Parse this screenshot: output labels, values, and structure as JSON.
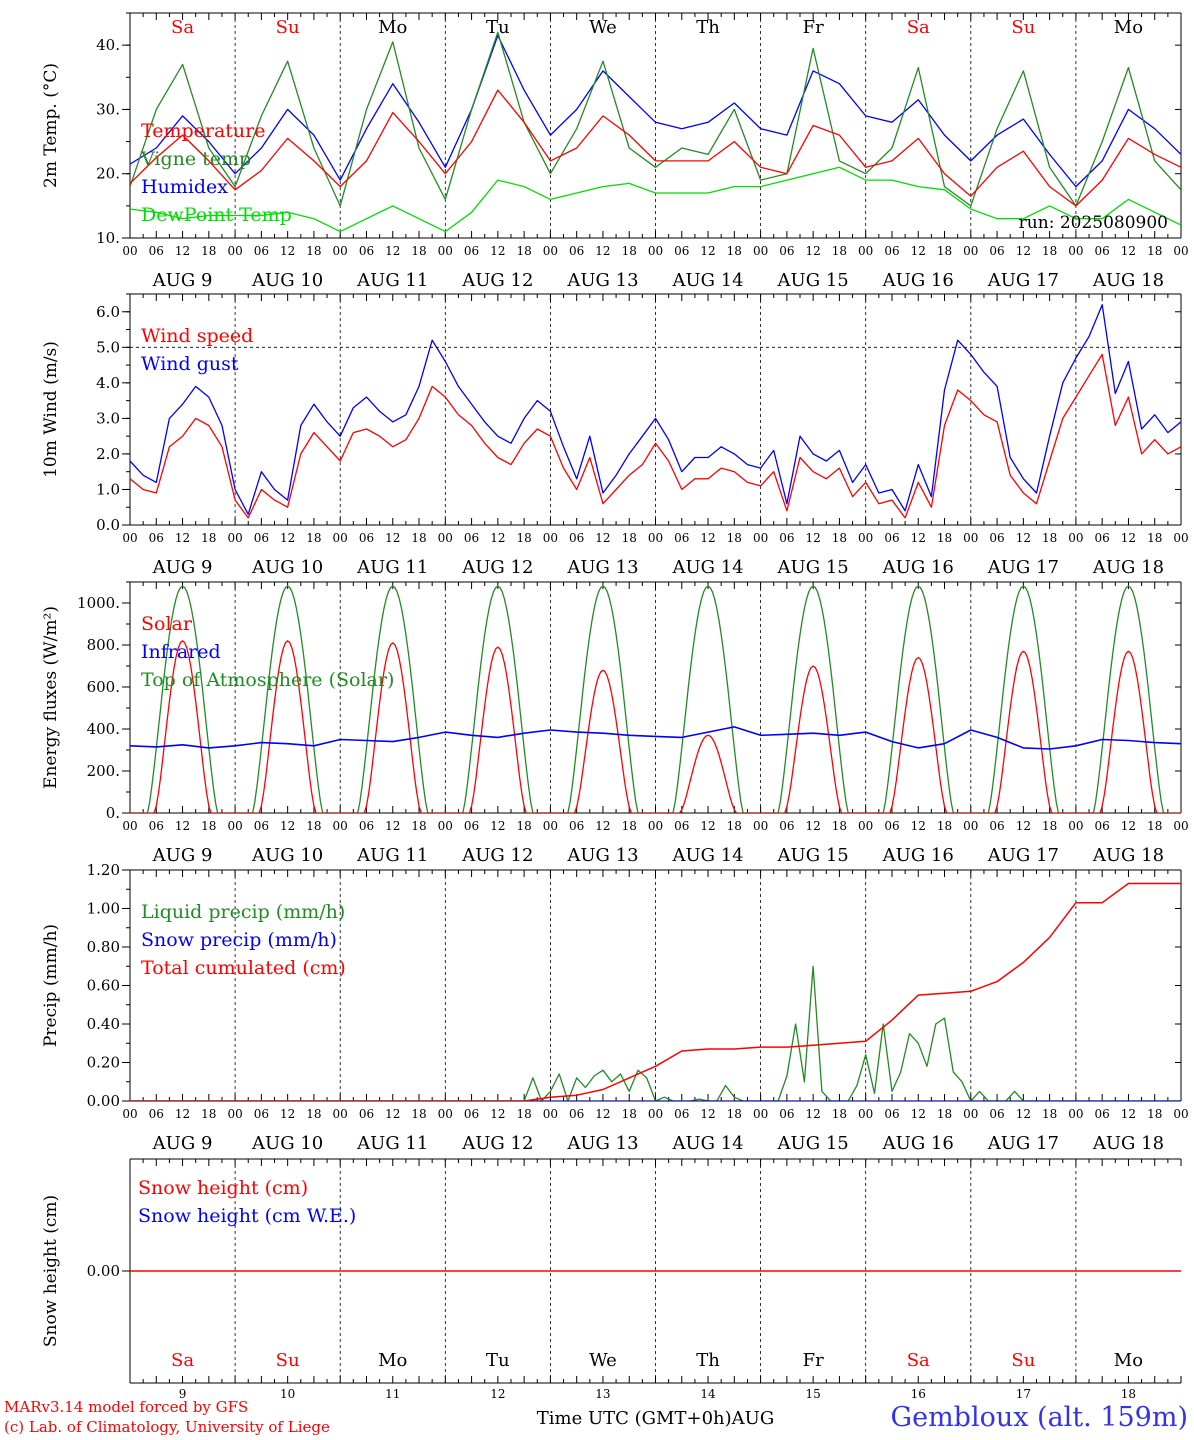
{
  "days": [
    "Sa",
    "Su",
    "Mo",
    "Tu",
    "We",
    "Th",
    "Fr",
    "Sa",
    "Su",
    "Mo"
  ],
  "weekend_color": "#ff0000",
  "weekday_color": "#000000",
  "dates": [
    "AUG  9",
    "AUG 10",
    "AUG 11",
    "AUG 12",
    "AUG 13",
    "AUG 14",
    "AUG 15",
    "AUG 16",
    "AUG 17",
    "AUG 18"
  ],
  "hour_labels": [
    "00",
    "06",
    "12",
    "18"
  ],
  "day_numbers": [
    "9",
    "10",
    "11",
    "12",
    "13",
    "14",
    "15",
    "16",
    "17",
    "18"
  ],
  "chart_data": [
    {
      "type": "line",
      "ylabel": "2m Temp. (°C)",
      "ylim": [
        10,
        45
      ],
      "yticks": [
        10,
        20,
        30,
        40
      ],
      "yticklabels": [
        "10.",
        "20.",
        "30.",
        "40."
      ],
      "grid": "vertical dashed at day boundaries",
      "annotation": "run: 2025080900",
      "x": [
        0,
        6,
        12,
        18,
        24,
        30,
        36,
        42,
        48,
        54,
        60,
        66,
        72,
        78,
        84,
        90,
        96,
        102,
        108,
        114,
        120,
        126,
        132,
        138,
        144,
        150,
        156,
        162,
        168,
        174,
        180,
        186,
        192,
        198,
        204,
        210,
        216,
        222,
        228,
        234,
        240
      ],
      "series": [
        {
          "name": "Temperature",
          "color": "#ff0000",
          "values": [
            18.5,
            22.5,
            26,
            22,
            17.5,
            20.5,
            25.5,
            22,
            18,
            22,
            29.5,
            25,
            20,
            25,
            33,
            28,
            22,
            24,
            29,
            26,
            22,
            22,
            22,
            25,
            21,
            20,
            27.5,
            26,
            21,
            22,
            25.5,
            20,
            16.5,
            21,
            23.5,
            18,
            15,
            19,
            25.5,
            23,
            21
          ]
        },
        {
          "name": "Vigne temp",
          "color": "#228b22",
          "values": [
            18,
            30,
            37,
            24,
            18,
            29,
            37.5,
            24,
            15,
            30,
            40.5,
            24,
            16,
            30,
            42,
            28,
            20,
            27,
            37.5,
            24,
            21,
            24,
            23,
            30,
            19,
            20,
            39.5,
            22,
            20,
            24,
            36.5,
            18,
            15,
            27,
            36,
            21,
            15,
            25,
            36.5,
            22,
            17.5
          ]
        },
        {
          "name": "Humidex",
          "color": "#0000ff",
          "values": [
            21.5,
            24,
            29,
            25,
            20,
            24,
            30,
            26,
            19,
            27,
            34,
            28,
            21,
            30,
            41.5,
            33,
            26,
            30,
            36,
            32,
            28,
            27,
            28,
            31,
            27,
            26,
            36,
            34,
            29,
            28,
            31.5,
            26,
            22,
            26,
            28.5,
            23,
            18,
            22,
            30,
            27,
            23
          ]
        },
        {
          "name": "DewPoint Temp",
          "color": "#00dd00",
          "values": [
            14.5,
            14,
            13,
            13.5,
            13.5,
            13.5,
            14,
            13,
            11,
            13,
            15,
            13,
            11,
            14,
            19,
            18,
            16,
            17,
            18,
            18.5,
            17,
            17,
            17,
            18,
            18,
            19,
            20,
            21,
            19,
            19,
            18,
            17.5,
            14.5,
            13,
            13,
            15,
            13,
            13,
            16,
            14,
            12
          ]
        }
      ]
    },
    {
      "type": "line",
      "ylabel": "10m Wind (m/s)",
      "ylim": [
        0,
        6.5
      ],
      "yticks": [
        0,
        1,
        2,
        3,
        4,
        5,
        6
      ],
      "yticklabels": [
        "0.0",
        "1.0",
        "2.0",
        "3.0",
        "4.0",
        "5.0",
        "6.0"
      ],
      "reference_line": 5.0,
      "x": [
        0,
        3,
        6,
        9,
        12,
        15,
        18,
        21,
        24,
        27,
        30,
        33,
        36,
        39,
        42,
        45,
        48,
        51,
        54,
        57,
        60,
        63,
        66,
        69,
        72,
        75,
        78,
        81,
        84,
        87,
        90,
        93,
        96,
        99,
        102,
        105,
        108,
        111,
        114,
        117,
        120,
        123,
        126,
        129,
        132,
        135,
        138,
        141,
        144,
        147,
        150,
        153,
        156,
        159,
        162,
        165,
        168,
        171,
        174,
        177,
        180,
        183,
        186,
        189,
        192,
        195,
        198,
        201,
        204,
        207,
        210,
        213,
        216,
        219,
        222,
        225,
        228,
        231,
        234,
        237,
        240
      ],
      "series": [
        {
          "name": "Wind speed",
          "color": "#ff0000",
          "values": [
            1.3,
            1.0,
            0.9,
            2.2,
            2.5,
            3.0,
            2.8,
            2.2,
            0.7,
            0.2,
            1.0,
            0.7,
            0.5,
            2.0,
            2.6,
            2.2,
            1.8,
            2.6,
            2.7,
            2.5,
            2.2,
            2.4,
            3.0,
            3.9,
            3.6,
            3.1,
            2.8,
            2.3,
            1.9,
            1.7,
            2.3,
            2.7,
            2.5,
            1.6,
            1.0,
            1.9,
            0.6,
            1.0,
            1.4,
            1.7,
            2.3,
            1.8,
            1.0,
            1.3,
            1.3,
            1.6,
            1.5,
            1.2,
            1.1,
            1.5,
            0.4,
            1.9,
            1.5,
            1.3,
            1.6,
            0.8,
            1.2,
            0.6,
            0.7,
            0.2,
            1.2,
            0.5,
            2.8,
            3.8,
            3.5,
            3.1,
            2.9,
            1.4,
            0.9,
            0.6,
            1.8,
            3.0,
            3.6,
            4.2,
            4.8,
            2.8,
            3.6,
            2.0,
            2.4,
            2.0,
            2.2
          ]
        },
        {
          "name": "Wind gust",
          "color": "#0000ff",
          "values": [
            1.8,
            1.4,
            1.2,
            3.0,
            3.4,
            3.9,
            3.6,
            2.8,
            1.0,
            0.3,
            1.5,
            1.0,
            0.7,
            2.8,
            3.4,
            2.9,
            2.5,
            3.3,
            3.6,
            3.2,
            2.9,
            3.1,
            3.9,
            5.2,
            4.6,
            3.9,
            3.4,
            2.9,
            2.5,
            2.3,
            3.0,
            3.5,
            3.2,
            2.2,
            1.3,
            2.5,
            0.9,
            1.4,
            2.0,
            2.5,
            3.0,
            2.4,
            1.5,
            1.9,
            1.9,
            2.2,
            2.0,
            1.7,
            1.6,
            2.1,
            0.6,
            2.5,
            2.0,
            1.8,
            2.1,
            1.2,
            1.7,
            0.9,
            1.0,
            0.4,
            1.7,
            0.8,
            3.8,
            5.2,
            4.8,
            4.3,
            3.9,
            1.9,
            1.3,
            0.9,
            2.5,
            4.0,
            4.7,
            5.3,
            6.2,
            3.7,
            4.6,
            2.7,
            3.1,
            2.6,
            2.9
          ]
        }
      ]
    },
    {
      "type": "line",
      "ylabel": "Energy fluxes (W/m²)",
      "ylim": [
        0,
        1100
      ],
      "yticks": [
        0,
        200,
        400,
        600,
        800,
        1000
      ],
      "yticklabels": [
        "0.",
        "200.",
        "400.",
        "600.",
        "800.",
        "1000."
      ],
      "solar_peaks": [
        820,
        820,
        810,
        790,
        680,
        370,
        700,
        740,
        770,
        770
      ],
      "toa_peak": 1080,
      "infrared": [
        320,
        315,
        325,
        310,
        320,
        335,
        330,
        320,
        350,
        345,
        340,
        360,
        385,
        370,
        360,
        380,
        395,
        385,
        380,
        370,
        365,
        360,
        385,
        410,
        370,
        375,
        380,
        370,
        385,
        340,
        310,
        330,
        395,
        360,
        310,
        305,
        320,
        350,
        345,
        335,
        330
      ],
      "series": [
        {
          "name": "Solar",
          "color": "#ff0000"
        },
        {
          "name": "Infrared",
          "color": "#0000ff"
        },
        {
          "name": "Top of Atmosphere (Solar)",
          "color": "#228b22"
        }
      ]
    },
    {
      "type": "line",
      "ylabel": "Precip (mm/h)",
      "ylim": [
        0,
        1.2
      ],
      "yticks": [
        0,
        0.2,
        0.4,
        0.6,
        0.8,
        1.0,
        1.2
      ],
      "yticklabels": [
        "0.00",
        "0.20",
        "0.40",
        "0.60",
        "0.80",
        "1.00",
        "1.20"
      ],
      "cumulated_x": [
        0,
        90,
        96,
        102,
        108,
        114,
        120,
        126,
        132,
        138,
        144,
        150,
        156,
        162,
        168,
        174,
        180,
        186,
        192,
        198,
        204,
        210,
        216,
        222,
        228,
        240
      ],
      "cumulated": [
        0,
        0,
        0.02,
        0.03,
        0.06,
        0.12,
        0.18,
        0.26,
        0.27,
        0.27,
        0.28,
        0.28,
        0.29,
        0.3,
        0.31,
        0.42,
        0.55,
        0.56,
        0.57,
        0.62,
        0.72,
        0.85,
        1.03,
        1.03,
        1.13,
        1.13
      ],
      "liquid_x": [
        0,
        90,
        92,
        94,
        96,
        98,
        100,
        102,
        104,
        106,
        108,
        110,
        112,
        114,
        116,
        118,
        120,
        122,
        124,
        126,
        128,
        130,
        132,
        134,
        136,
        138,
        140,
        142,
        144,
        146,
        148,
        150,
        152,
        154,
        156,
        158,
        160,
        162,
        164,
        166,
        168,
        170,
        172,
        174,
        176,
        178,
        180,
        182,
        184,
        186,
        188,
        190,
        192,
        194,
        196,
        198,
        200,
        202,
        204,
        206,
        208,
        210,
        212,
        214,
        216,
        218,
        220,
        222,
        224,
        226,
        228,
        230,
        240
      ],
      "liquid": [
        0,
        0,
        0.12,
        0,
        0.05,
        0.14,
        0,
        0.12,
        0.07,
        0.13,
        0.16,
        0.1,
        0.14,
        0.05,
        0.16,
        0.12,
        0,
        0.02,
        0,
        0,
        0,
        0.01,
        0,
        0,
        0.08,
        0.02,
        0,
        0,
        0,
        0,
        0,
        0.13,
        0.4,
        0.1,
        0.7,
        0.05,
        0,
        0,
        0,
        0.08,
        0.24,
        0.04,
        0.4,
        0.05,
        0.15,
        0.35,
        0.3,
        0.18,
        0.4,
        0.43,
        0.15,
        0.1,
        0,
        0.05,
        0,
        0,
        0,
        0.05,
        0,
        0,
        0,
        0,
        0,
        0,
        0,
        0,
        0,
        0,
        0,
        0,
        0,
        0,
        0
      ],
      "series": [
        {
          "name": "Liquid precip (mm/h)",
          "color": "#228b22"
        },
        {
          "name": "Snow precip (mm/h)",
          "color": "#0000ff"
        },
        {
          "name": "Total cumulated (cm)",
          "color": "#ff0000"
        }
      ]
    },
    {
      "type": "line",
      "ylabel": "Snow height (cm)",
      "ylim": [
        -1,
        1
      ],
      "yticks": [
        0
      ],
      "yticklabels": [
        "0.00"
      ],
      "xlabel": "Time UTC (GMT+0h)AUG",
      "series": [
        {
          "name": "Snow height (cm)",
          "color": "#ff0000",
          "values": [
            0,
            0
          ]
        },
        {
          "name": "Snow height (cm W.E.)",
          "color": "#0000ff"
        }
      ]
    }
  ],
  "footer": {
    "model_line": "MARv3.14 model forced by GFS",
    "credit_line": "(c) Lab. of Climatology, University of Liege",
    "location": "Gembloux (alt. 159m)"
  }
}
